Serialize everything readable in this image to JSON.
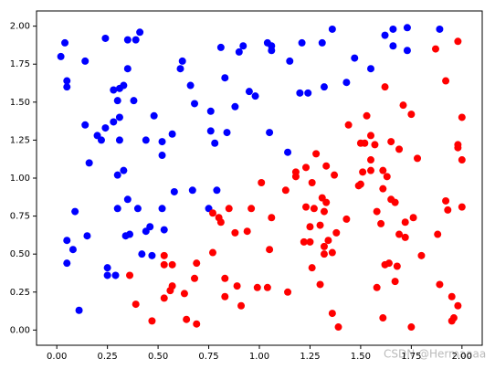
{
  "chart_data": {
    "type": "scatter",
    "xlim": [
      -0.1,
      2.1
    ],
    "ylim": [
      -0.1,
      2.1
    ],
    "xticks": [
      {
        "value": 0,
        "label": "0.00"
      },
      {
        "value": 0.25,
        "label": "0.25"
      },
      {
        "value": 0.5,
        "label": "0.50"
      },
      {
        "value": 0.75,
        "label": "0.75"
      },
      {
        "value": 1,
        "label": "1.00"
      },
      {
        "value": 1.25,
        "label": "1.25"
      },
      {
        "value": 1.5,
        "label": "1.50"
      },
      {
        "value": 1.75,
        "label": "1.75"
      },
      {
        "value": 2,
        "label": "2.00"
      }
    ],
    "yticks": [
      {
        "value": 0,
        "label": "0.00"
      },
      {
        "value": 0.25,
        "label": "0.25"
      },
      {
        "value": 0.5,
        "label": "0.50"
      },
      {
        "value": 0.75,
        "label": "0.75"
      },
      {
        "value": 1,
        "label": "1.00"
      },
      {
        "value": 1.25,
        "label": "1.25"
      },
      {
        "value": 1.5,
        "label": "1.50"
      },
      {
        "value": 1.75,
        "label": "1.75"
      },
      {
        "value": 2,
        "label": "2.00"
      }
    ],
    "watermark": "CSDN @Hermaaaa",
    "series": [
      {
        "color": "#0000ff",
        "x": [
          0.02,
          0.04,
          0.05,
          0.05,
          0.14,
          0.24,
          0.35,
          0.39,
          0.41,
          0.35,
          0.28,
          0.31,
          0.33,
          0.3,
          0.38,
          0.14,
          0.2,
          0.22,
          0.24,
          0.28,
          0.31,
          0.31,
          0.16,
          0.3,
          0.33,
          0.48,
          0.44,
          0.52,
          0.57,
          0.52,
          0.61,
          0.62,
          0.66,
          0.68,
          0.76,
          0.76,
          0.78,
          0.84,
          0.81,
          0.83,
          0.9,
          0.92,
          0.88,
          0.95,
          0.98,
          1.04,
          1.06,
          1.06,
          1.15,
          1.05,
          1.14,
          1.21,
          1.31,
          1.36,
          1.2,
          1.24,
          1.32,
          1.43,
          1.47,
          1.55,
          1.62,
          1.66,
          1.66,
          1.73,
          1.73,
          1.89,
          0.35,
          0.3,
          0.34,
          0.36,
          0.4,
          0.58,
          0.52,
          0.53,
          0.44,
          0.46,
          0.15,
          0.05,
          0.08,
          0.05,
          0.09,
          0.42,
          0.47,
          0.25,
          0.25,
          0.29,
          0.11,
          0.67,
          0.75,
          0.79
        ],
        "values": [
          1.8,
          1.89,
          1.64,
          1.6,
          1.77,
          1.92,
          1.91,
          1.91,
          1.96,
          1.72,
          1.58,
          1.59,
          1.61,
          1.51,
          1.51,
          1.35,
          1.28,
          1.25,
          1.33,
          1.37,
          1.4,
          1.25,
          1.1,
          1.02,
          1.05,
          1.41,
          1.25,
          1.24,
          1.29,
          1.15,
          1.72,
          1.77,
          1.61,
          1.49,
          1.44,
          1.31,
          1.23,
          1.3,
          1.86,
          1.66,
          1.83,
          1.87,
          1.47,
          1.57,
          1.54,
          1.89,
          1.87,
          1.84,
          1.77,
          1.3,
          1.17,
          1.89,
          1.89,
          1.98,
          1.56,
          1.56,
          1.6,
          1.63,
          1.79,
          1.72,
          1.94,
          1.98,
          1.87,
          1.84,
          1.99,
          1.98,
          0.86,
          0.8,
          0.62,
          0.63,
          0.8,
          0.91,
          0.8,
          0.66,
          0.65,
          0.68,
          0.62,
          0.59,
          0.53,
          0.44,
          0.78,
          0.5,
          0.49,
          0.41,
          0.36,
          0.36,
          0.13,
          0.92,
          0.8,
          0.92
        ]
      },
      {
        "color": "#ff0000",
        "x": [
          1.87,
          1.98,
          1.92,
          2.0,
          1.71,
          1.75,
          1.62,
          1.53,
          1.44,
          1.5,
          1.52,
          1.55,
          1.57,
          1.65,
          1.69,
          1.78,
          1.98,
          1.98,
          2.0,
          1.55,
          1.51,
          1.55,
          1.5,
          1.49,
          1.61,
          1.63,
          1.61,
          1.65,
          1.58,
          1.6,
          1.67,
          1.72,
          1.76,
          1.69,
          1.72,
          1.8,
          1.92,
          1.93,
          2.0,
          1.88,
          1.89,
          1.95,
          1.98,
          1.96,
          1.95,
          1.75,
          1.62,
          1.64,
          1.68,
          1.67,
          1.58,
          1.61,
          1.39,
          1.36,
          1.38,
          1.43,
          1.34,
          1.32,
          1.32,
          1.36,
          1.3,
          1.26,
          1.25,
          1.22,
          1.25,
          1.27,
          1.31,
          1.33,
          1.32,
          1.3,
          1.23,
          1.26,
          1.28,
          1.18,
          1.18,
          1.23,
          1.37,
          1.33,
          1.13,
          1.01,
          0.96,
          1.06,
          1.05,
          0.99,
          1.04,
          1.14,
          0.94,
          0.88,
          0.85,
          0.8,
          0.81,
          0.77,
          0.77,
          0.83,
          0.89,
          0.83,
          0.91,
          0.69,
          0.68,
          0.63,
          0.53,
          0.53,
          0.57,
          0.57,
          0.56,
          0.53,
          0.36,
          0.39,
          0.47,
          0.64,
          0.69
        ],
        "values": [
          1.85,
          1.9,
          1.64,
          1.4,
          1.48,
          1.42,
          1.6,
          1.41,
          1.35,
          1.23,
          1.23,
          1.28,
          1.22,
          1.24,
          1.19,
          1.13,
          1.22,
          1.2,
          1.12,
          1.12,
          1.04,
          1.05,
          0.96,
          0.95,
          1.05,
          1.01,
          0.93,
          0.86,
          0.78,
          0.7,
          0.84,
          0.71,
          0.74,
          0.63,
          0.61,
          0.49,
          0.85,
          0.79,
          0.81,
          0.63,
          0.3,
          0.22,
          0.16,
          0.08,
          0.06,
          0.02,
          0.43,
          0.44,
          0.42,
          0.32,
          0.28,
          0.08,
          0.02,
          0.11,
          0.64,
          0.73,
          0.59,
          0.55,
          0.5,
          0.51,
          0.3,
          0.41,
          0.58,
          0.58,
          0.68,
          0.8,
          0.87,
          0.84,
          0.78,
          0.69,
          0.81,
          0.97,
          1.16,
          1.01,
          1.04,
          1.07,
          1.02,
          1.08,
          0.92,
          0.97,
          0.8,
          0.74,
          0.53,
          0.28,
          0.28,
          0.25,
          0.65,
          0.64,
          0.8,
          0.74,
          0.71,
          0.77,
          0.51,
          0.34,
          0.29,
          0.22,
          0.16,
          0.44,
          0.34,
          0.24,
          0.43,
          0.49,
          0.43,
          0.29,
          0.26,
          0.21,
          0.36,
          0.17,
          0.06,
          0.07,
          0.04
        ]
      }
    ]
  }
}
